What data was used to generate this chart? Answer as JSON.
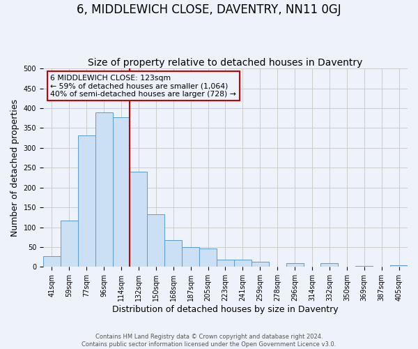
{
  "title": "6, MIDDLEWICH CLOSE, DAVENTRY, NN11 0GJ",
  "subtitle": "Size of property relative to detached houses in Daventry",
  "xlabel": "Distribution of detached houses by size in Daventry",
  "ylabel": "Number of detached properties",
  "footer_line1": "Contains HM Land Registry data © Crown copyright and database right 2024.",
  "footer_line2": "Contains public sector information licensed under the Open Government Licence v3.0.",
  "bar_labels": [
    "41sqm",
    "59sqm",
    "77sqm",
    "96sqm",
    "114sqm",
    "132sqm",
    "150sqm",
    "168sqm",
    "187sqm",
    "205sqm",
    "223sqm",
    "241sqm",
    "259sqm",
    "278sqm",
    "296sqm",
    "314sqm",
    "332sqm",
    "350sqm",
    "369sqm",
    "387sqm",
    "405sqm"
  ],
  "bar_heights": [
    27,
    117,
    332,
    390,
    378,
    240,
    132,
    68,
    50,
    46,
    18,
    18,
    13,
    0,
    10,
    0,
    9,
    0,
    3,
    0,
    5
  ],
  "bar_color": "#cce0f5",
  "bar_edge_color": "#5b9bd5",
  "annotation_line1": "6 MIDDLEWICH CLOSE: 123sqm",
  "annotation_line2": "← 59% of detached houses are smaller (1,064)",
  "annotation_line3": "40% of semi-detached houses are larger (728) →",
  "annotation_box_edge_color": "#cc0000",
  "vline_color": "#cc0000",
  "ylim": [
    0,
    500
  ],
  "yticks": [
    0,
    50,
    100,
    150,
    200,
    250,
    300,
    350,
    400,
    450,
    500
  ],
  "grid_color": "#cccccc",
  "bg_color": "#eef2fa",
  "title_fontsize": 12,
  "subtitle_fontsize": 10,
  "xlabel_fontsize": 9,
  "ylabel_fontsize": 9,
  "tick_fontsize": 7,
  "footer_fontsize": 6
}
